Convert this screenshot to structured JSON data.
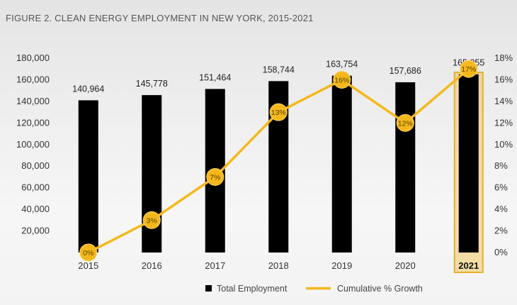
{
  "chart_data": {
    "type": "bar",
    "title": "FIGURE 2. CLEAN ENERGY EMPLOYMENT IN NEW YORK, 2015-2021",
    "categories": [
      "2015",
      "2016",
      "2017",
      "2018",
      "2019",
      "2020",
      "2021"
    ],
    "highlight_category": "2021",
    "series": [
      {
        "name": "Total Employment",
        "type": "bar",
        "axis": "left",
        "values": [
          140964,
          145778,
          151464,
          158744,
          163754,
          157686,
          165055
        ],
        "labels": [
          "140,964",
          "145,778",
          "151,464",
          "158,744",
          "163,754",
          "157,686",
          "165,055"
        ],
        "color": "#000000"
      },
      {
        "name": "Cumulative % Growth",
        "type": "line",
        "axis": "right",
        "values": [
          0,
          3,
          7,
          13,
          16,
          12,
          17
        ],
        "labels": [
          "0%",
          "3%",
          "7%",
          "13%",
          "16%",
          "12%",
          "17%"
        ],
        "color": "#f5b81c"
      }
    ],
    "y_left": {
      "min": 0,
      "max": 180000,
      "ticks": [
        0,
        20000,
        40000,
        60000,
        80000,
        100000,
        120000,
        140000,
        160000,
        180000
      ],
      "tick_labels": [
        "",
        "20,000",
        "40,000",
        "60,000",
        "80,000",
        "100,000",
        "120,000",
        "140,000",
        "160,000",
        "180,000"
      ]
    },
    "y_right": {
      "min": 0,
      "max": 18,
      "ticks": [
        0,
        2,
        4,
        6,
        8,
        10,
        12,
        14,
        16,
        18
      ],
      "tick_labels": [
        "0%",
        "2%",
        "4%",
        "6%",
        "8%",
        "10%",
        "12%",
        "14%",
        "16%",
        "18%"
      ]
    },
    "legend": {
      "position": "bottom",
      "items": [
        {
          "label": "Total Employment",
          "marker": "square",
          "color": "#000000"
        },
        {
          "label": "Cumulative % Growth",
          "marker": "line",
          "color": "#f5b81c"
        }
      ]
    },
    "highlight_color": "#f5c242",
    "grid": false
  }
}
